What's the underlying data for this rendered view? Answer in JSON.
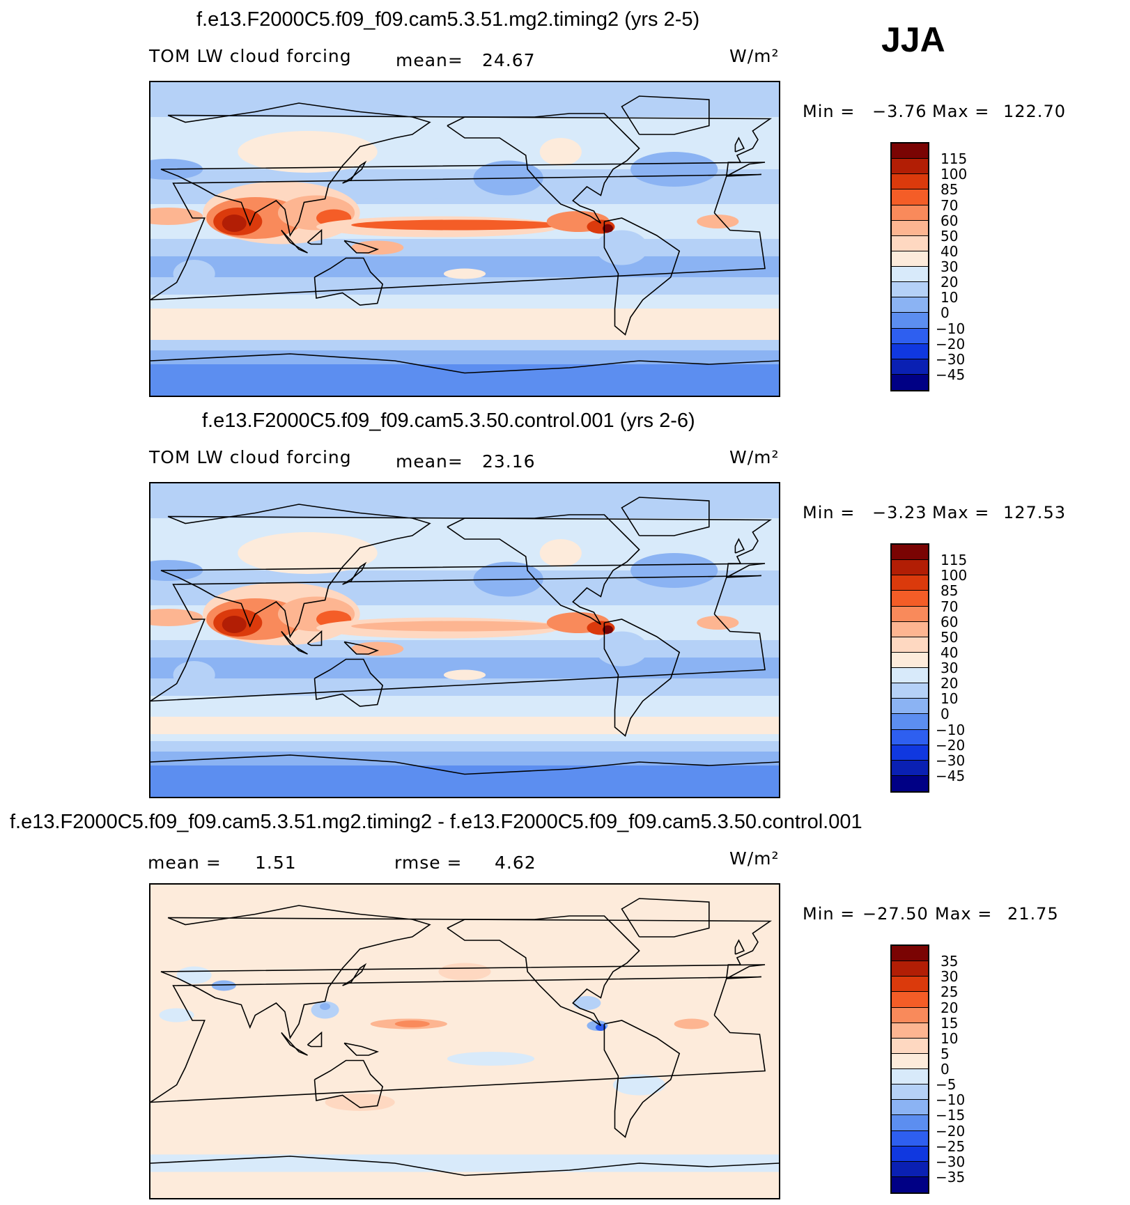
{
  "season": "JJA",
  "chart_data": [
    {
      "type": "heatmap",
      "title": "f.e13.F2000C5.f09_f09.cam5.3.51.mg2.timing2 (yrs 2-5)",
      "variable": "TOM LW cloud forcing",
      "mean_label": "mean=",
      "mean": "24.67",
      "units": "W/m²",
      "min": "−3.76",
      "max": "122.70",
      "levels": [
        "115",
        "100",
        "85",
        "70",
        "60",
        "50",
        "40",
        "30",
        "20",
        "10",
        "0",
        "−10",
        "−20",
        "−30",
        "−45"
      ],
      "colors": [
        "#7a0403",
        "#b21e05",
        "#db3a0c",
        "#f45d27",
        "#f98a5b",
        "#fdb591",
        "#fed8c1",
        "#fdebdb",
        "#d8eafa",
        "#b5d1f7",
        "#8bb3f3",
        "#5c8ef0",
        "#2e5ff0",
        "#1038e0",
        "#0a20b3",
        "#000085"
      ],
      "pattern": "abs"
    },
    {
      "type": "heatmap",
      "title": "f.e13.F2000C5.f09_f09.cam5.3.50.control.001 (yrs 2-6)",
      "variable": "TOM LW cloud forcing",
      "mean_label": "mean=",
      "mean": "23.16",
      "units": "W/m²",
      "min": "−3.23",
      "max": "127.53",
      "levels": [
        "115",
        "100",
        "85",
        "70",
        "60",
        "50",
        "40",
        "30",
        "20",
        "10",
        "0",
        "−10",
        "−20",
        "−30",
        "−45"
      ],
      "colors": [
        "#7a0403",
        "#b21e05",
        "#db3a0c",
        "#f45d27",
        "#f98a5b",
        "#fdb591",
        "#fed8c1",
        "#fdebdb",
        "#d8eafa",
        "#b5d1f7",
        "#8bb3f3",
        "#5c8ef0",
        "#2e5ff0",
        "#1038e0",
        "#0a20b3",
        "#000085"
      ],
      "pattern": "abs"
    },
    {
      "type": "heatmap",
      "title": "f.e13.F2000C5.f09_f09.cam5.3.51.mg2.timing2 - f.e13.F2000C5.f09_f09.cam5.3.50.control.001",
      "mean_label": "mean =",
      "mean": "1.51",
      "rmse_label": "rmse =",
      "rmse": "4.62",
      "units": "W/m²",
      "min": "−27.50",
      "max": "21.75",
      "levels": [
        "35",
        "30",
        "25",
        "20",
        "15",
        "10",
        "5",
        "0",
        "−5",
        "−10",
        "−15",
        "−20",
        "−25",
        "−30",
        "−35"
      ],
      "colors": [
        "#7a0403",
        "#b21e05",
        "#db3a0c",
        "#f45d27",
        "#f98a5b",
        "#fdb591",
        "#fed8c1",
        "#fdebdb",
        "#d8eafa",
        "#b5d1f7",
        "#8bb3f3",
        "#5c8ef0",
        "#2e5ff0",
        "#1038e0",
        "#0a20b3",
        "#000085"
      ],
      "pattern": "diff"
    }
  ],
  "labels": {
    "min": "Min =",
    "max": "Max ="
  }
}
